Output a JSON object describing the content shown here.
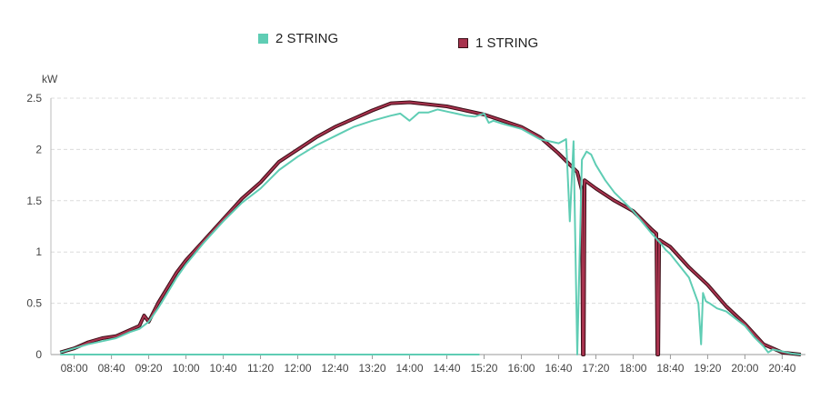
{
  "chart_data": {
    "type": "line",
    "ylabel": "kW",
    "ylim": [
      0,
      2.5
    ],
    "y_ticks": [
      "0",
      "0.5",
      "1",
      "1.5",
      "2",
      "2.5"
    ],
    "x_ticks": [
      "08:00",
      "08:40",
      "09:20",
      "10:00",
      "10:40",
      "11:20",
      "12:00",
      "12:40",
      "13:20",
      "14:00",
      "14:40",
      "15:20",
      "16:00",
      "16:40",
      "17:20",
      "18:00",
      "18:40",
      "19:20",
      "20:00",
      "20:40"
    ],
    "xlim": [
      "07:35",
      "21:05"
    ],
    "grid": true,
    "legend_position": "top",
    "series": [
      {
        "name": "2 STRING",
        "color": "#5fcdb4",
        "x": [
          "07:45",
          "08:00",
          "08:15",
          "08:30",
          "08:45",
          "09:00",
          "09:10",
          "09:20",
          "09:30",
          "09:40",
          "09:50",
          "10:00",
          "10:20",
          "10:40",
          "11:00",
          "11:20",
          "11:40",
          "12:00",
          "12:20",
          "12:40",
          "13:00",
          "13:20",
          "13:40",
          "13:50",
          "14:00",
          "14:10",
          "14:20",
          "14:30",
          "14:40",
          "14:50",
          "15:00",
          "15:10",
          "15:20",
          "15:25",
          "15:30",
          "15:40",
          "16:00",
          "16:20",
          "16:40",
          "16:48",
          "16:52",
          "16:56",
          "17:00",
          "17:05",
          "17:10",
          "17:15",
          "17:20",
          "17:30",
          "17:40",
          "18:00",
          "18:20",
          "18:30",
          "18:35",
          "18:40",
          "19:00",
          "19:10",
          "19:13",
          "19:15",
          "19:18",
          "19:22",
          "19:30",
          "19:40",
          "20:00",
          "20:10",
          "20:20",
          "20:25",
          "20:30",
          "20:40",
          "20:50",
          "21:00"
        ],
        "values": [
          0.02,
          0.06,
          0.1,
          0.13,
          0.16,
          0.22,
          0.25,
          0.32,
          0.45,
          0.6,
          0.75,
          0.88,
          1.1,
          1.3,
          1.48,
          1.62,
          1.8,
          1.93,
          2.04,
          2.13,
          2.22,
          2.28,
          2.33,
          2.35,
          2.28,
          2.36,
          2.36,
          2.39,
          2.37,
          2.35,
          2.33,
          2.32,
          2.35,
          2.26,
          2.28,
          2.25,
          2.2,
          2.1,
          2.06,
          2.1,
          1.3,
          2.08,
          0,
          1.9,
          1.98,
          1.95,
          1.85,
          1.7,
          1.58,
          1.4,
          1.18,
          1.08,
          1.02,
          0.98,
          0.75,
          0.5,
          0.1,
          0.6,
          0.52,
          0.5,
          0.45,
          0.42,
          0.28,
          0.17,
          0.08,
          0.02,
          0.05,
          0.03,
          0.01,
          0
        ]
      },
      {
        "name": "1 STRING",
        "color": "#a8334e",
        "x": [
          "07:45",
          "08:00",
          "08:15",
          "08:30",
          "08:45",
          "09:00",
          "09:10",
          "09:15",
          "09:20",
          "09:30",
          "09:40",
          "09:50",
          "10:00",
          "10:20",
          "10:40",
          "11:00",
          "11:20",
          "11:40",
          "12:00",
          "12:20",
          "12:40",
          "13:00",
          "13:20",
          "13:40",
          "14:00",
          "14:20",
          "14:40",
          "15:00",
          "15:20",
          "15:40",
          "16:00",
          "16:20",
          "16:40",
          "17:00",
          "17:05",
          "17:06",
          "17:07",
          "17:08",
          "17:20",
          "17:40",
          "18:00",
          "18:20",
          "18:25",
          "18:26",
          "18:27",
          "18:28",
          "18:40",
          "19:00",
          "19:20",
          "19:40",
          "20:00",
          "20:20",
          "20:40",
          "21:00"
        ],
        "values": [
          0.02,
          0.06,
          0.12,
          0.16,
          0.18,
          0.24,
          0.28,
          0.38,
          0.32,
          0.5,
          0.65,
          0.8,
          0.92,
          1.12,
          1.32,
          1.52,
          1.68,
          1.88,
          2.0,
          2.12,
          2.22,
          2.3,
          2.38,
          2.45,
          2.46,
          2.44,
          2.42,
          2.38,
          2.34,
          2.28,
          2.22,
          2.12,
          1.96,
          1.78,
          1.6,
          0,
          0,
          1.7,
          1.62,
          1.5,
          1.4,
          1.22,
          1.18,
          0,
          0,
          1.12,
          1.05,
          0.85,
          0.68,
          0.47,
          0.3,
          0.1,
          0.02,
          0
        ]
      },
      {
        "name": "",
        "color": "#5fcdb4",
        "x": [
          "07:45",
          "15:15"
        ],
        "values": [
          0,
          0
        ]
      }
    ]
  },
  "legend": {
    "items": [
      "2 STRING",
      "1 STRING"
    ]
  }
}
